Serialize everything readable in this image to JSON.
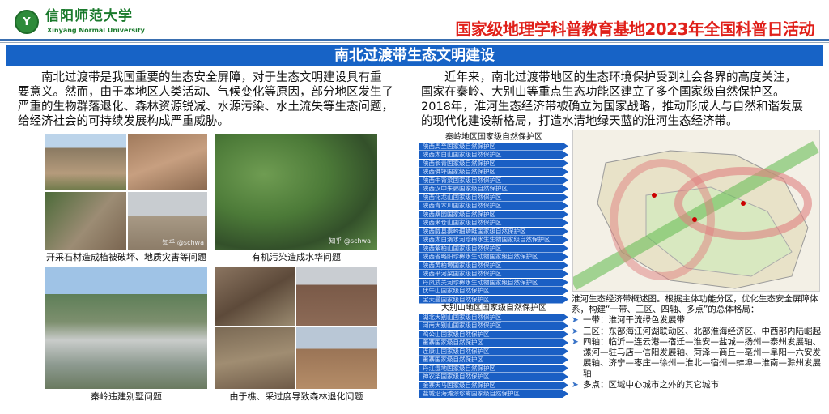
{
  "header": {
    "logo_text": "Y",
    "university_cn": "信阳师范大学",
    "university_en": "Xinyang Normal University",
    "event_title": "国家级地理学科普教育基地2023年全国科普日活动"
  },
  "banner": {
    "title": "南北过渡带生态文明建设"
  },
  "left_paragraph": [
    "　　南北过渡带是我国重要的生态安全屏障，对于生态文明建设具有重",
    "要意义。然而，由于本地区人类活动、气候变化等原因，部分地区发生了",
    "严重的生物群落退化、森林资源锐减、水源污染、水土流失等生态问题，",
    "给经济社会的可持续发展构成严重威胁。"
  ],
  "right_paragraph": [
    "　　近年来，南北过渡带地区的生态环境保护受到社会各界的高度关注，",
    "国家在秦岭、大别山等重点生态功能区建立了多个国家级自然保护区。",
    "2018年，淮河生态经济带被确立为国家战略，推动形成人与自然和谐发展",
    "的现代化建设新格局，打造水清地绿天蓝的淮河生态经济带。"
  ],
  "photos": {
    "mining_caption": "开采石材造成植被破坏、地质灾害等问题",
    "pollution_caption": "有机污染造成水华问题",
    "villa_caption": "秦岭违建别墅问题",
    "forest_caption": "由于樵、采过度导致森林退化问题",
    "watermark": "知乎 @schwa"
  },
  "reserves": {
    "qinling_title": "秦岭地区国家级自然保护区",
    "qinling": [
      "陕西周至国家级自然保护区",
      "陕西太白山国家级自然保护区",
      "陕西长青国家级自然保护区",
      "陕西佛坪国家级自然保护区",
      "陕西牛背梁国家级自然保护区",
      "陕西汉中朱鹮国家级自然保护区",
      "陕西化龙山国家级自然保护区",
      "陕西青木川国家级自然保护区",
      "陕西桑园国家级自然保护区",
      "陕西米仓山国家级自然保护区",
      "陕西陇县秦岭细鳞鲑国家级自然保护区",
      "陕西太白湑水河珍稀水生生物国家级自然保护区",
      "陕西紫柏山国家级自然保护区",
      "陕西省略阳珍稀水生动物国家级自然保护区",
      "陕西黄柏塬国家级自然保护区",
      "陕西平河梁国家级自然保护区",
      "丹凤武关河珍稀水生动物国家级自然保护区",
      "伏牛山国家级自然保护区",
      "宝天曼国家级自然保护区"
    ],
    "dabie_title": "大别山地区国家级自然保护区",
    "dabie": [
      "湖北大别山国家级自然保护区",
      "河南大别山国家级自然保护区",
      "鸡公山国家级自然保护区",
      "董寨国家级自然保护区",
      "连康山国家级自然保护区",
      "董寨国家级自然保护区",
      "丹江湿地国家级自然保护区",
      "神农架国家级自然保护区",
      "金寨天马国家级自然保护区",
      "盐城沿海滩涂珍禽国家级自然保护区"
    ]
  },
  "map_description": {
    "intro": "淮河生态经济带概述图。根据主体功能分区，优化生态安全屏障体系，构建“一带、三区、四轴、多点”的总体格局：",
    "bullets": [
      "一带：淮河干流绿色发展带",
      "三区：东部海江河湖联动区、北部淮海经济区、中西部内陆崛起",
      "四轴：临沂—连云港—宿迁—淮安—盐城—扬州—泰州发展轴、漯河—驻马店—信阳发展轴、菏泽—商丘—亳州—阜阳—六安发展轴、济宁—枣庄—徐州—淮北—宿州—蚌埠—淮南—滁州发展轴",
      "多点：区域中心城市之外的其它城市"
    ],
    "bullet_icon": "arrowhead-bullet-icon"
  },
  "colors": {
    "banner": "#1763c6",
    "event_title": "#e0201a",
    "list_bar": "#1a5fc4",
    "university": "#1a7a2c"
  }
}
